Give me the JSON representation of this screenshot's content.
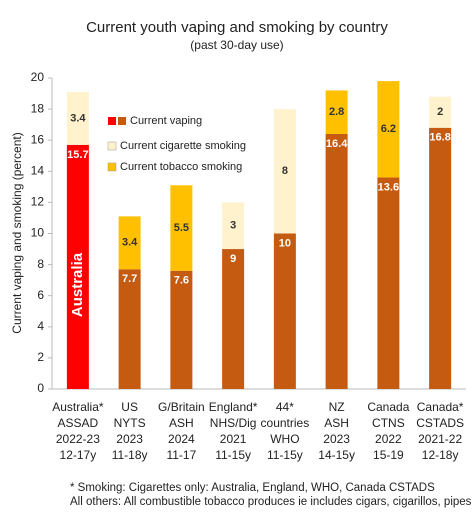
{
  "chart_data": {
    "type": "stacked_bar",
    "title": "Current youth vaping and smoking by country",
    "subtitle": "(past 30-day use)",
    "y_label": "Current vaping and smoking (percent)",
    "categories": [
      [
        "Australia*",
        "ASSAD",
        "2022-23",
        "12-17y"
      ],
      [
        "US",
        "NYTS",
        "2023",
        "11-18y"
      ],
      [
        "G/Britain",
        "ASH",
        "2024",
        "11-17"
      ],
      [
        "England*",
        "NHS/Dig",
        "2021",
        "11-15y"
      ],
      [
        "44*",
        "countries",
        "WHO",
        "11-15y"
      ],
      [
        "NZ",
        "ASH",
        "2023",
        "14-15y"
      ],
      [
        "Canada",
        "CTNS",
        "2022",
        "15-19"
      ],
      [
        "Canada*",
        "CSTADS",
        "2021-22",
        "12-18y"
      ]
    ],
    "series": [
      {
        "name": "Current vaping",
        "color": "#c55a11",
        "colors": [
          "#ff0000",
          "#c55a11",
          "#c55a11",
          "#c55a11",
          "#c55a11",
          "#c55a11",
          "#c55a11",
          "#c55a11"
        ],
        "values": [
          15.7,
          7.7,
          7.6,
          9,
          10,
          16.4,
          13.6,
          16.8
        ]
      },
      {
        "name": "Current cigarette smoking",
        "color": "#fff2cc",
        "values": [
          3.4,
          null,
          null,
          3,
          8,
          null,
          null,
          2
        ]
      },
      {
        "name": "Current tobacco smoking",
        "color": "#ffc000",
        "values": [
          null,
          3.4,
          5.5,
          null,
          null,
          2.8,
          6.2,
          null
        ]
      }
    ],
    "annotation": "Australia",
    "ylim": [
      0,
      20
    ],
    "yticks": [
      0,
      2,
      4,
      6,
      8,
      10,
      12,
      14,
      16,
      18,
      20
    ],
    "grid": false,
    "footnotes": [
      "* Smoking:  Cigarettes only: Australia, England, WHO, Canada CSTADS",
      "All others: All combustible tobacco produces ie includes cigars, cigarillos, pipes"
    ]
  }
}
